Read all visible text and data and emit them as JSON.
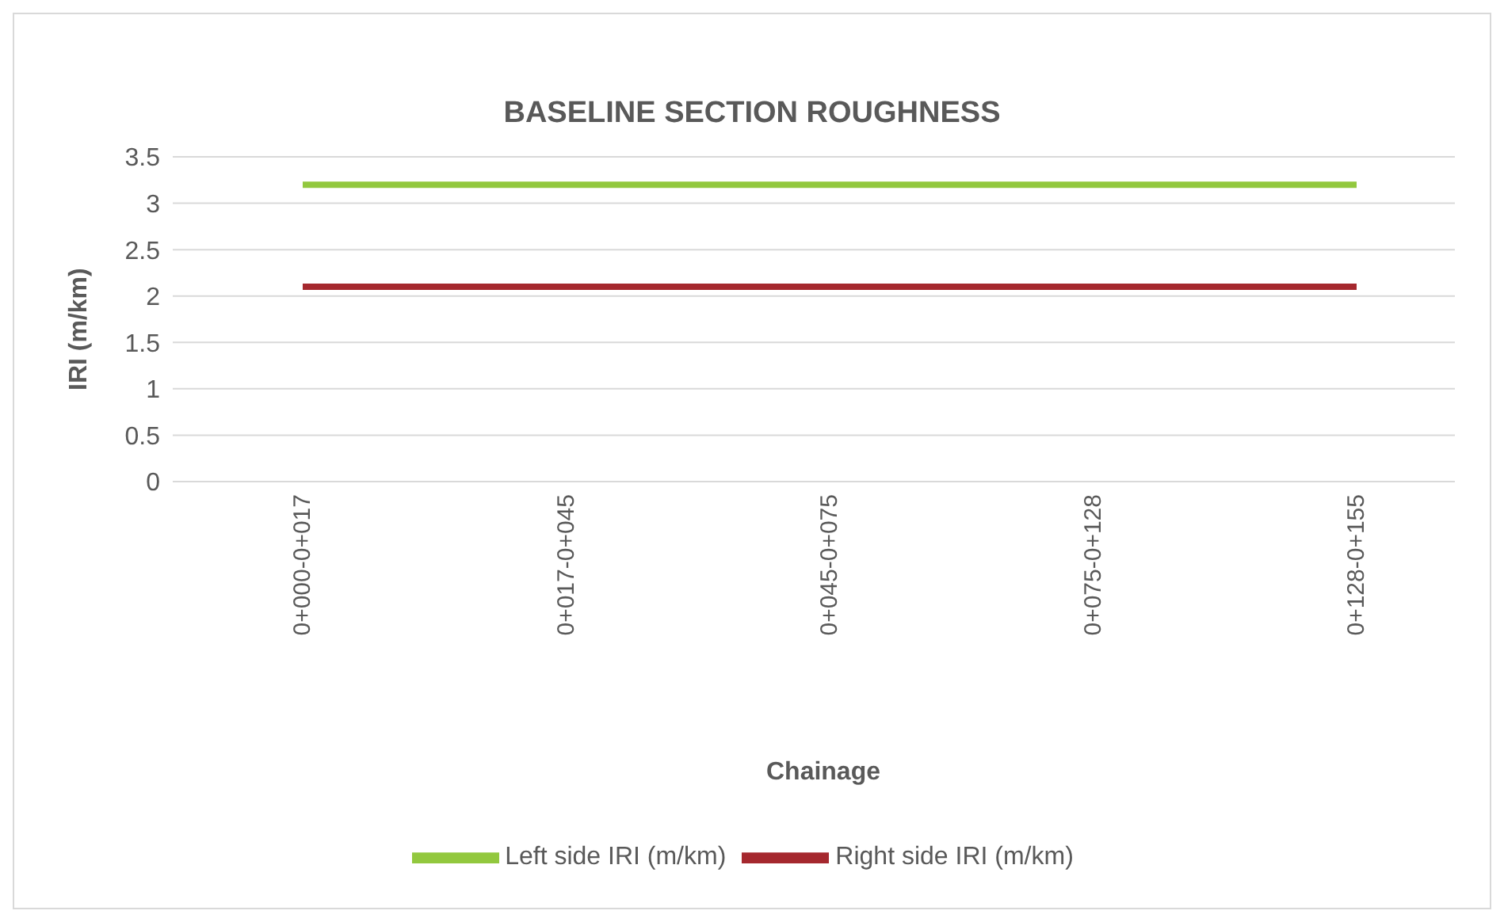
{
  "chart_data": {
    "type": "line",
    "title": "BASELINE SECTION ROUGHNESS",
    "xlabel": "Chainage",
    "ylabel": "IRI (m/km)",
    "categories": [
      "0+000-0+017",
      "0+017-0+045",
      "0+045-0+075",
      "0+075-0+128",
      "0+128-0+155"
    ],
    "series": [
      {
        "name": "Left side IRI (m/km)",
        "color": "#92c83e",
        "values": [
          3.2,
          3.2,
          3.2,
          3.2,
          3.2
        ]
      },
      {
        "name": "Right side IRI (m/km)",
        "color": "#a5282e",
        "values": [
          2.1,
          2.1,
          2.1,
          2.1,
          2.1
        ]
      }
    ],
    "ylim": [
      0,
      3.5
    ],
    "yticks": [
      0,
      0.5,
      1,
      1.5,
      2,
      2.5,
      3,
      3.5
    ],
    "grid": "y",
    "legend": "bottom",
    "marker": "none",
    "line_style": "solid"
  }
}
